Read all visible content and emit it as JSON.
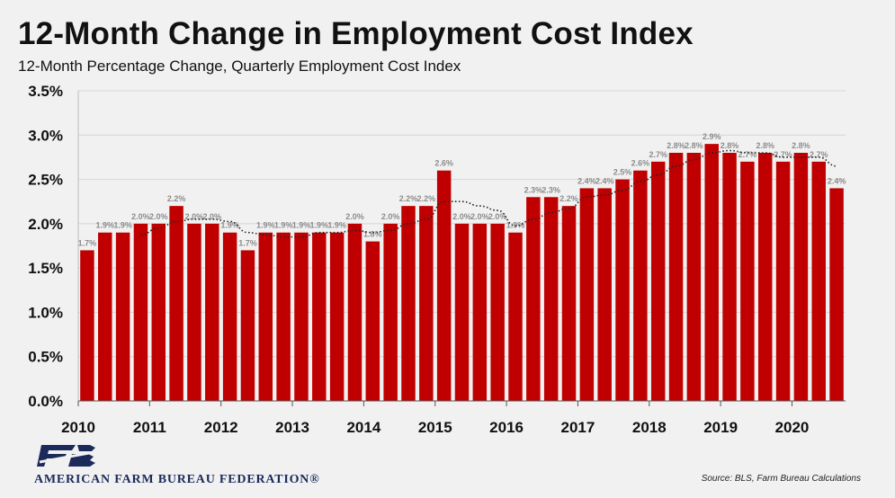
{
  "title": "12-Month Change in Employment Cost Index",
  "subtitle": "12-Month Percentage Change, Quarterly Employment Cost Index",
  "source": "Source: BLS, Farm Bureau Calculations",
  "logo": {
    "initials": "FB",
    "name": "AMERICAN FARM BUREAU FEDERATION®"
  },
  "colors": {
    "bar": "#c00000",
    "trend": "#222222",
    "label": "#8c8c8c",
    "logo": "#1b2a5a"
  },
  "chart_data": {
    "type": "bar",
    "ylim": [
      0,
      3.5
    ],
    "yticks": [
      "0.0%",
      "0.5%",
      "1.0%",
      "1.5%",
      "2.0%",
      "2.5%",
      "3.0%",
      "3.5%"
    ],
    "xticks": [
      "2010",
      "2011",
      "2012",
      "2013",
      "2014",
      "2015",
      "2016",
      "2017",
      "2018",
      "2019",
      "2020"
    ],
    "grid": true,
    "values": [
      1.7,
      1.9,
      1.9,
      2.0,
      2.0,
      2.2,
      2.0,
      2.0,
      1.9,
      1.7,
      1.9,
      1.9,
      1.9,
      1.9,
      1.9,
      2.0,
      1.8,
      2.0,
      2.2,
      2.2,
      2.6,
      2.0,
      2.0,
      2.0,
      1.9,
      2.3,
      2.3,
      2.2,
      2.4,
      2.4,
      2.5,
      2.6,
      2.7,
      2.8,
      2.8,
      2.9,
      2.8,
      2.7,
      2.8,
      2.7,
      2.8,
      2.7,
      2.4
    ],
    "data_labels": [
      "1.7%",
      "1.9%",
      "1.9%",
      "2.0%",
      "2.0%",
      "2.2%",
      "2.0%",
      "2.0%",
      "1.9%",
      "1.7%",
      "1.9%",
      "1.9%",
      "1.9%",
      "1.9%",
      "1.9%",
      "2.0%",
      "1.8%",
      "2.0%",
      "2.2%",
      "2.2%",
      "2.6%",
      "2.0%",
      "2.0%",
      "2.0%",
      "1.9%",
      "2.3%",
      "2.3%",
      "2.2%",
      "2.4%",
      "2.4%",
      "2.5%",
      "2.6%",
      "2.7%",
      "2.8%",
      "2.8%",
      "2.9%",
      "2.8%",
      "2.7%",
      "2.8%",
      "2.7%",
      "2.8%",
      "2.7%",
      "2.4%"
    ],
    "trendline": "dotted moving average"
  }
}
